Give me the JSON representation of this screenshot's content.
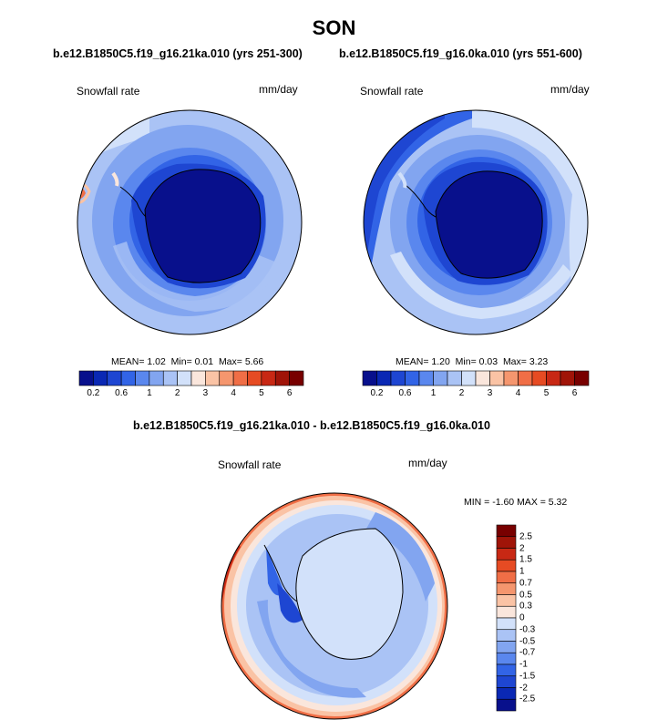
{
  "header": {
    "season": "SON",
    "left_run": "b.e12.B1850C5.f19_g16.21ka.010 (yrs 251-300)",
    "right_run": "b.e12.B1850C5.f19_g16.0ka.010 (yrs 551-600)",
    "diff_title": "b.e12.B1850C5.f19_g16.21ka.010 - b.e12.B1850C5.f19_g16.0ka.010"
  },
  "panels": {
    "left": {
      "variable": "Snowfall rate",
      "units": "mm/day",
      "mean_label": "MEAN=",
      "mean": "1.02",
      "min_label": "Min=",
      "min": "0.01",
      "max_label": "Max=",
      "max": "5.66"
    },
    "right": {
      "variable": "Snowfall rate",
      "units": "mm/day",
      "mean_label": "MEAN=",
      "mean": "1.20",
      "min_label": "Min=",
      "min": "0.03",
      "max_label": "Max=",
      "max": "3.23"
    },
    "diff": {
      "variable": "Snowfall rate",
      "units": "mm/day",
      "minmax": "MIN =  -1.60 MAX =   5.32"
    }
  },
  "colorbar_abs": {
    "colors": [
      "#08108c",
      "#0a28b4",
      "#1e46d2",
      "#3264e6",
      "#5a87ee",
      "#82a5f0",
      "#aac3f5",
      "#d2e1fa",
      "#fae6dc",
      "#fac3a5",
      "#f5966e",
      "#f06e46",
      "#e64b23",
      "#c82814",
      "#a01408",
      "#780000"
    ],
    "tick_labels": [
      "0.2",
      "0.6",
      "1",
      "2",
      "3",
      "4",
      "5",
      "6"
    ]
  },
  "colorbar_diff": {
    "colors": [
      "#780000",
      "#a01408",
      "#c82814",
      "#e64b23",
      "#f06e46",
      "#f5966e",
      "#fac3a5",
      "#fae6dc",
      "#d2e1fa",
      "#aac3f5",
      "#82a5f0",
      "#5a87ee",
      "#3264e6",
      "#1e46d2",
      "#0a28b4",
      "#08108c"
    ],
    "labels": [
      "2.5",
      "2",
      "1.5",
      "1",
      "0.7",
      "0.5",
      "0.3",
      "0",
      "-0.3",
      "-0.5",
      "-0.7",
      "-1",
      "-1.5",
      "-2",
      "-2.5"
    ]
  }
}
